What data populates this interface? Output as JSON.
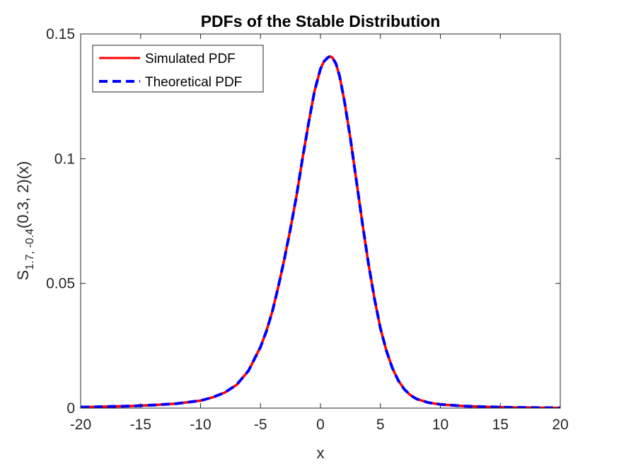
{
  "chart_data": {
    "type": "line",
    "title": "PDFs of the Stable Distribution",
    "xlabel": "x",
    "ylabel": {
      "base": "S",
      "subscript": "1.7, -0.4",
      "rest": "(0.3, 2)(x)"
    },
    "xlim": [
      -20,
      20
    ],
    "ylim": [
      0,
      0.15
    ],
    "xticks": [
      -20,
      -15,
      -10,
      -5,
      0,
      5,
      10,
      15,
      20
    ],
    "yticks": [
      0,
      0.05,
      0.1,
      0.15
    ],
    "xtick_labels": [
      "-20",
      "-15",
      "-10",
      "-5",
      "0",
      "5",
      "10",
      "15",
      "20"
    ],
    "ytick_labels": [
      "0",
      "0.05",
      "0.1",
      "0.15"
    ],
    "grid": false,
    "legend_position": "top-left",
    "x": [
      -20,
      -18,
      -16,
      -14,
      -12,
      -10,
      -9,
      -8,
      -7,
      -6,
      -5,
      -4.5,
      -4,
      -3.5,
      -3,
      -2.5,
      -2,
      -1.5,
      -1,
      -0.5,
      0,
      0.3,
      0.6,
      0.8,
      1,
      1.3,
      1.6,
      2,
      2.5,
      3,
      3.5,
      4,
      4.5,
      5,
      5.5,
      6,
      6.5,
      7,
      7.5,
      8,
      9,
      10,
      12,
      14,
      16,
      18,
      20
    ],
    "series": [
      {
        "name": "Simulated PDF",
        "color": "#ff0000",
        "style": "solid",
        "values": [
          0.0004,
          0.0006,
          0.0008,
          0.0012,
          0.0018,
          0.003,
          0.0043,
          0.0062,
          0.0093,
          0.015,
          0.0245,
          0.031,
          0.039,
          0.049,
          0.06,
          0.072,
          0.085,
          0.1,
          0.114,
          0.127,
          0.136,
          0.139,
          0.1405,
          0.141,
          0.1405,
          0.138,
          0.133,
          0.123,
          0.108,
          0.091,
          0.074,
          0.058,
          0.044,
          0.032,
          0.023,
          0.016,
          0.011,
          0.0075,
          0.0052,
          0.0037,
          0.0022,
          0.0015,
          0.0008,
          0.0005,
          0.0003,
          0.0002,
          0.0001
        ]
      },
      {
        "name": "Theoretical PDF",
        "color": "#0000ff",
        "style": "dashed",
        "values": [
          0.0004,
          0.0006,
          0.0008,
          0.0012,
          0.0018,
          0.003,
          0.0043,
          0.0062,
          0.0093,
          0.015,
          0.0245,
          0.031,
          0.039,
          0.049,
          0.06,
          0.072,
          0.085,
          0.1,
          0.114,
          0.127,
          0.136,
          0.139,
          0.1405,
          0.141,
          0.1405,
          0.138,
          0.133,
          0.123,
          0.108,
          0.091,
          0.074,
          0.058,
          0.044,
          0.032,
          0.023,
          0.016,
          0.011,
          0.0075,
          0.0052,
          0.0037,
          0.0022,
          0.0015,
          0.0008,
          0.0005,
          0.0003,
          0.0002,
          0.0001
        ]
      }
    ]
  }
}
